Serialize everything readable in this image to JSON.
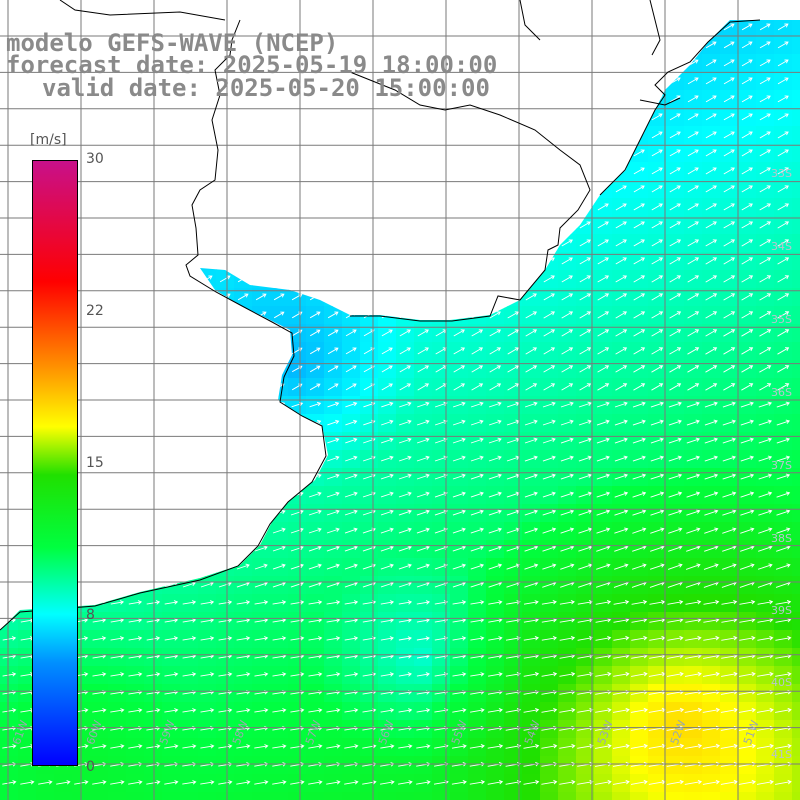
{
  "title": {
    "line1": "modelo GEFS-WAVE (NCEP)",
    "line2": "forecast date: 2025-05-19 18:00:00",
    "line3": "valid date: 2025-05-20 15:00:00"
  },
  "colorbar": {
    "unit": "[m/s]",
    "min": 0,
    "max": 30,
    "ticks": [
      "30",
      "22",
      "15",
      "8",
      "0"
    ],
    "tick_values": [
      30,
      22,
      15,
      8,
      0
    ]
  },
  "map": {
    "lat_labels": [
      "33S",
      "34S",
      "35S",
      "36S",
      "37S",
      "38S",
      "39S",
      "40S",
      "41S"
    ],
    "lon_labels": [
      "61W",
      "60W",
      "59W",
      "58W",
      "57W",
      "56W",
      "55W",
      "54W",
      "53W",
      "52W",
      "51W"
    ],
    "colors": {
      "land": "#ffffff",
      "grid": "#7a7a7a",
      "coast": "#000000",
      "arrows": "#ffffff"
    },
    "wind_direction": "from west-southwest toward east-northeast"
  }
}
